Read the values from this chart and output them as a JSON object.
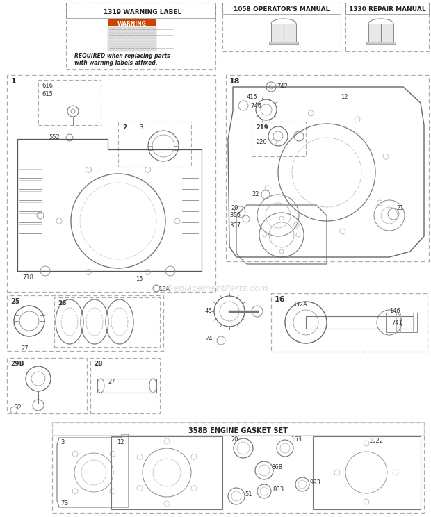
{
  "bg_color": "#ffffff",
  "watermark": "eReplacementParts.com",
  "text_color": "#333333",
  "line_color": "#555555",
  "dash_color": "#888888",
  "header": {
    "warning_label_title": "1319 WARNING LABEL",
    "operators_manual_title": "1058 OPERATOR'S MANUAL",
    "repair_manual_title": "1330 REPAIR MANUAL",
    "required_text": "REQUIRED when replacing parts\nwith warning labels affixed."
  },
  "layout": {
    "fig_w": 6.2,
    "fig_h": 7.44,
    "dpi": 100
  }
}
